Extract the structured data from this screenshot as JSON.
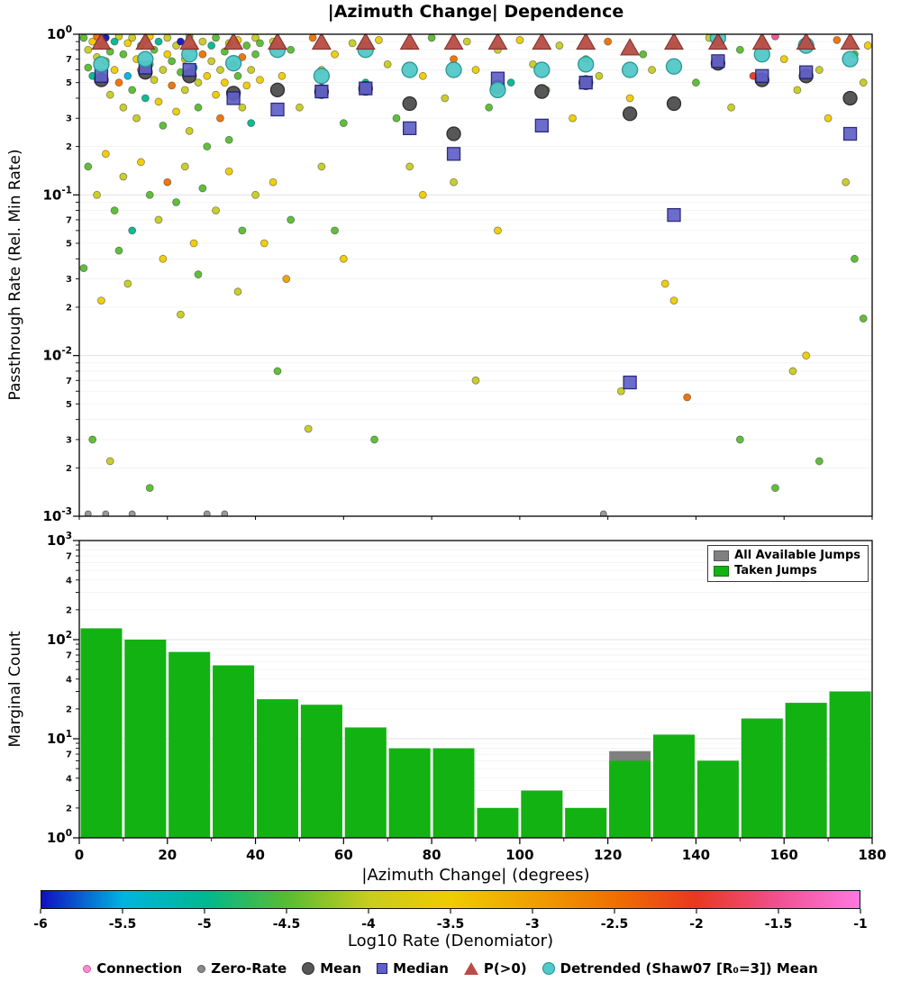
{
  "chart_data": [
    {
      "type": "scatter",
      "title": "|Azimuth Change| Dependence",
      "ylabel": "Passthrough Rate (Rel. Min Rate)",
      "xlim": [
        0,
        180
      ],
      "y_scale": "log",
      "y_decade_exponents": [
        0,
        -1,
        -2,
        -3
      ],
      "y_minor_labels": [
        7,
        5,
        3,
        2
      ],
      "grid": true,
      "bin_centers": [
        5,
        15,
        25,
        35,
        45,
        55,
        65,
        75,
        85,
        95,
        105,
        115,
        125,
        135,
        145,
        155,
        165,
        175
      ],
      "series": {
        "mean": [
          0.52,
          0.58,
          0.55,
          0.43,
          0.45,
          0.44,
          0.46,
          0.37,
          0.24,
          0.47,
          0.44,
          0.5,
          0.32,
          0.37,
          0.66,
          0.52,
          0.55,
          0.4
        ],
        "median": [
          0.55,
          0.62,
          0.6,
          0.4,
          0.34,
          0.44,
          0.46,
          0.26,
          0.18,
          0.53,
          0.27,
          0.5,
          0.0068,
          0.075,
          0.68,
          0.55,
          0.58,
          0.24
        ],
        "p_gt0": [
          0.98,
          1.0,
          0.99,
          1.0,
          1.0,
          1.0,
          1.0,
          1.0,
          1.0,
          1.0,
          1.0,
          1.0,
          0.82,
          1.0,
          1.0,
          1.0,
          1.0,
          1.0
        ],
        "detrended": [
          0.65,
          0.7,
          0.75,
          0.66,
          0.8,
          0.55,
          0.8,
          0.6,
          0.6,
          0.45,
          0.6,
          0.65,
          0.6,
          0.63,
          0.95,
          0.75,
          0.85,
          0.7
        ]
      },
      "markers": {
        "mean": {
          "fill": "#575757",
          "edge": "#2e2e2e"
        },
        "median": {
          "fill": "#6060c8",
          "edge": "#1c1c70"
        },
        "p_gt0": {
          "fill": "#b94c45",
          "edge": "#7d2e29"
        },
        "detrended": {
          "fill": "#52c8c8",
          "edge": "#23918f"
        },
        "zero_rate": {
          "fill": "#999999",
          "edge": "#5a5a5a"
        }
      },
      "zero_rate_x": [
        2,
        6,
        12,
        29,
        33,
        119
      ],
      "points": [
        [
          1,
          0.95,
          -4.5
        ],
        [
          2,
          0.8,
          -4
        ],
        [
          2,
          0.62,
          -4.5
        ],
        [
          3,
          0.9,
          -3.5
        ],
        [
          3,
          0.55,
          -5
        ],
        [
          4,
          0.97,
          -2.5
        ],
        [
          4,
          0.72,
          -4
        ],
        [
          5,
          0.5,
          -4.5
        ],
        [
          5,
          0.85,
          -4
        ],
        [
          6,
          0.95,
          -6
        ],
        [
          6,
          0.68,
          -3.5
        ],
        [
          7,
          0.78,
          -4.5
        ],
        [
          7,
          0.42,
          -4
        ],
        [
          8,
          0.9,
          -5
        ],
        [
          8,
          0.6,
          -3.5
        ],
        [
          9,
          0.5,
          -2.5
        ],
        [
          9,
          0.97,
          -4
        ],
        [
          10,
          0.75,
          -4.5
        ],
        [
          10,
          0.35,
          -4
        ],
        [
          11,
          0.88,
          -3.5
        ],
        [
          11,
          0.55,
          -5.5
        ],
        [
          12,
          0.95,
          -4
        ],
        [
          12,
          0.45,
          -4.5
        ],
        [
          13,
          0.7,
          -3.5
        ],
        [
          13,
          0.3,
          -4
        ],
        [
          14,
          0.85,
          -4.5
        ],
        [
          14,
          0.6,
          -2.5
        ],
        [
          15,
          0.92,
          -4
        ],
        [
          15,
          0.4,
          -5
        ],
        [
          16,
          0.65,
          -4.5
        ],
        [
          16,
          0.97,
          -3.5
        ],
        [
          17,
          0.52,
          -4
        ],
        [
          17,
          0.8,
          -4.5
        ],
        [
          18,
          0.38,
          -3.5
        ],
        [
          18,
          0.9,
          -5
        ],
        [
          19,
          0.6,
          -4
        ],
        [
          19,
          0.27,
          -4.5
        ],
        [
          20,
          0.75,
          -3.5
        ],
        [
          20,
          0.95,
          -4
        ],
        [
          21,
          0.48,
          -2.5
        ],
        [
          21,
          0.68,
          -4.5
        ],
        [
          22,
          0.85,
          -4
        ],
        [
          22,
          0.33,
          -3.5
        ],
        [
          23,
          0.58,
          -4.5
        ],
        [
          23,
          0.9,
          -6
        ],
        [
          24,
          0.45,
          -4
        ],
        [
          24,
          0.7,
          -3.5
        ],
        [
          25,
          0.97,
          -4.5
        ],
        [
          25,
          0.25,
          -4
        ],
        [
          26,
          0.62,
          -5
        ],
        [
          26,
          0.82,
          -3.5
        ],
        [
          27,
          0.5,
          -4
        ],
        [
          27,
          0.35,
          -4.5
        ],
        [
          28,
          0.75,
          -2.5
        ],
        [
          28,
          0.9,
          -4
        ],
        [
          29,
          0.55,
          -3.5
        ],
        [
          29,
          0.2,
          -4.5
        ],
        [
          30,
          0.68,
          -4
        ],
        [
          30,
          0.85,
          -5
        ],
        [
          31,
          0.42,
          -3.5
        ],
        [
          31,
          0.95,
          -4.5
        ],
        [
          32,
          0.6,
          -4
        ],
        [
          32,
          0.3,
          -2.5
        ],
        [
          33,
          0.78,
          -4.5
        ],
        [
          33,
          0.5,
          -3.5
        ],
        [
          34,
          0.88,
          -4
        ],
        [
          34,
          0.22,
          -4.5
        ],
        [
          35,
          0.65,
          -5
        ],
        [
          35,
          0.4,
          -4
        ],
        [
          36,
          0.92,
          -3.5
        ],
        [
          36,
          0.55,
          -4.5
        ],
        [
          37,
          0.35,
          -4
        ],
        [
          37,
          0.72,
          -2.5
        ],
        [
          38,
          0.85,
          -4.5
        ],
        [
          38,
          0.48,
          -3.5
        ],
        [
          39,
          0.6,
          -4
        ],
        [
          39,
          0.28,
          -5
        ],
        [
          40,
          0.75,
          -4.5
        ],
        [
          40,
          0.95,
          -4
        ],
        [
          41,
          0.52,
          -3.5
        ],
        [
          41,
          0.88,
          -4.5
        ],
        [
          2,
          0.15,
          -4.5
        ],
        [
          4,
          0.1,
          -4
        ],
        [
          6,
          0.18,
          -3.5
        ],
        [
          8,
          0.08,
          -4.5
        ],
        [
          10,
          0.13,
          -4
        ],
        [
          12,
          0.06,
          -5
        ],
        [
          14,
          0.16,
          -3.5
        ],
        [
          16,
          0.1,
          -4.5
        ],
        [
          18,
          0.07,
          -4
        ],
        [
          20,
          0.12,
          -2.5
        ],
        [
          22,
          0.09,
          -4.5
        ],
        [
          24,
          0.15,
          -4
        ],
        [
          26,
          0.05,
          -3.5
        ],
        [
          28,
          0.11,
          -4.5
        ],
        [
          31,
          0.08,
          -4
        ],
        [
          34,
          0.14,
          -3.5
        ],
        [
          37,
          0.06,
          -4.5
        ],
        [
          40,
          0.1,
          -4
        ],
        [
          44,
          0.12,
          -3.5
        ],
        [
          48,
          0.07,
          -4.5
        ],
        [
          55,
          0.15,
          -4
        ],
        [
          1,
          0.035,
          -4.5
        ],
        [
          3,
          0.003,
          -4.5
        ],
        [
          5,
          0.022,
          -3.5
        ],
        [
          7,
          0.0022,
          -4
        ],
        [
          9,
          0.045,
          -4.5
        ],
        [
          11,
          0.028,
          -4
        ],
        [
          16,
          0.0015,
          -4.5
        ],
        [
          19,
          0.04,
          -3.5
        ],
        [
          23,
          0.018,
          -4
        ],
        [
          27,
          0.032,
          -4.5
        ],
        [
          36,
          0.025,
          -4
        ],
        [
          42,
          0.05,
          -3.5
        ],
        [
          45,
          0.008,
          -4.5
        ],
        [
          47,
          0.03,
          -3
        ],
        [
          52,
          0.0035,
          -4
        ],
        [
          58,
          0.06,
          -4.5
        ],
        [
          60,
          0.04,
          -3.5
        ],
        [
          67,
          0.003,
          -4.5
        ],
        [
          75,
          0.15,
          -4
        ],
        [
          78,
          0.1,
          -3.5
        ],
        [
          85,
          0.12,
          -4
        ],
        [
          95,
          0.06,
          -3.5
        ],
        [
          44,
          0.9,
          -4
        ],
        [
          46,
          0.55,
          -3.5
        ],
        [
          48,
          0.8,
          -4.5
        ],
        [
          50,
          0.35,
          -4
        ],
        [
          53,
          0.95,
          -2.5
        ],
        [
          55,
          0.6,
          -4
        ],
        [
          58,
          0.75,
          -3.5
        ],
        [
          60,
          0.28,
          -4.5
        ],
        [
          62,
          0.88,
          -4
        ],
        [
          65,
          0.5,
          -5
        ],
        [
          68,
          0.92,
          -3.5
        ],
        [
          70,
          0.65,
          -4
        ],
        [
          72,
          0.3,
          -4.5
        ],
        [
          75,
          0.85,
          -4
        ],
        [
          78,
          0.55,
          -3.5
        ],
        [
          80,
          0.95,
          -4.5
        ],
        [
          83,
          0.4,
          -4
        ],
        [
          85,
          0.7,
          -2.5
        ],
        [
          88,
          0.9,
          -4
        ],
        [
          90,
          0.6,
          -3.5
        ],
        [
          93,
          0.35,
          -4.5
        ],
        [
          95,
          0.8,
          -4
        ],
        [
          98,
          0.5,
          -5
        ],
        [
          100,
          0.92,
          -3.5
        ],
        [
          103,
          0.65,
          -4
        ],
        [
          106,
          0.45,
          -4.5
        ],
        [
          109,
          0.85,
          -4
        ],
        [
          112,
          0.3,
          -3.5
        ],
        [
          115,
          0.7,
          -4.5
        ],
        [
          118,
          0.55,
          -4
        ],
        [
          120,
          0.9,
          -2.5
        ],
        [
          123,
          0.006,
          -4
        ],
        [
          125,
          0.4,
          -3.5
        ],
        [
          128,
          0.75,
          -4.5
        ],
        [
          130,
          0.6,
          -4
        ],
        [
          133,
          0.028,
          -3.5
        ],
        [
          135,
          0.85,
          -4
        ],
        [
          138,
          0.0055,
          -2.5
        ],
        [
          140,
          0.5,
          -4.5
        ],
        [
          143,
          0.95,
          -4
        ],
        [
          145,
          0.65,
          -3.5
        ],
        [
          148,
          0.35,
          -4
        ],
        [
          150,
          0.8,
          -4.5
        ],
        [
          153,
          0.55,
          -2
        ],
        [
          155,
          0.9,
          -4
        ],
        [
          158,
          0.0015,
          -4.5
        ],
        [
          160,
          0.7,
          -3.5
        ],
        [
          163,
          0.45,
          -4
        ],
        [
          165,
          0.88,
          -4.5
        ],
        [
          168,
          0.6,
          -4
        ],
        [
          170,
          0.3,
          -3.5
        ],
        [
          172,
          0.92,
          -2.5
        ],
        [
          174,
          0.12,
          -4
        ],
        [
          176,
          0.75,
          -4.5
        ],
        [
          178,
          0.5,
          -4
        ],
        [
          179,
          0.85,
          -3.5
        ],
        [
          176,
          0.04,
          -4.5
        ],
        [
          178,
          0.017,
          -4.5
        ],
        [
          165,
          0.01,
          -3.5
        ],
        [
          162,
          0.008,
          -4
        ],
        [
          168,
          0.0022,
          -4.5
        ],
        [
          150,
          0.003,
          -4.5
        ],
        [
          135,
          0.022,
          -3.5
        ],
        [
          90,
          0.007,
          -4
        ],
        [
          158,
          0.97,
          -1.5
        ]
      ]
    },
    {
      "type": "bar",
      "ylabel": "Marginal Count",
      "xlabel": "|Azimuth Change| (degrees)",
      "y_scale": "log",
      "y_decade_exponents": [
        3,
        2,
        1,
        0
      ],
      "y_minor_labels": [
        7,
        4,
        2
      ],
      "grid": true,
      "bin_width": 10,
      "bin_start": 0,
      "xticks": [
        0,
        20,
        40,
        60,
        80,
        100,
        120,
        140,
        160,
        180
      ],
      "series": [
        {
          "name": "All Available Jumps",
          "color": "#808080",
          "values": [
            130,
            100,
            75,
            55,
            25,
            22,
            13,
            8,
            8,
            2,
            3,
            2,
            7.5,
            11,
            6,
            16,
            23,
            30
          ]
        },
        {
          "name": "Taken Jumps",
          "color": "#12b212",
          "values": [
            130,
            100,
            75,
            55,
            25,
            22,
            13,
            8,
            8,
            2,
            3,
            2,
            6,
            11,
            6,
            16,
            23,
            30
          ]
        }
      ]
    }
  ],
  "colorbar": {
    "label": "Log10 Rate (Denomiator)",
    "ticks": [
      "-6",
      "-5.5",
      "-5",
      "-4.5",
      "-4",
      "-3.5",
      "-3",
      "-2.5",
      "-2",
      "-1.5",
      "-1"
    ],
    "range": [
      -6,
      -1
    ],
    "stops": [
      [
        0.0,
        "#1010c0"
      ],
      [
        0.1,
        "#00b4e0"
      ],
      [
        0.2,
        "#00b890"
      ],
      [
        0.3,
        "#58bc30"
      ],
      [
        0.4,
        "#c8cc20"
      ],
      [
        0.5,
        "#f0cc00"
      ],
      [
        0.6,
        "#f0a000"
      ],
      [
        0.7,
        "#f07000"
      ],
      [
        0.8,
        "#e83820"
      ],
      [
        0.9,
        "#f05090"
      ],
      [
        1.0,
        "#ff78e0"
      ]
    ]
  },
  "legend": {
    "items": [
      {
        "label": "Connection",
        "marker": "dot-small",
        "color": "#fb8ccd",
        "edge": "#d05a9e"
      },
      {
        "label": "Zero-Rate",
        "marker": "dot-small",
        "color": "#8a8a8a",
        "edge": "#5a5a5a"
      },
      {
        "label": "Mean",
        "marker": "dot",
        "color": "#575757",
        "edge": "#2e2e2e"
      },
      {
        "label": "Median",
        "marker": "square",
        "color": "#6060c8",
        "edge": "#1c1c70"
      },
      {
        "label": "P(>0)",
        "marker": "triangle",
        "color": "#b94c45",
        "edge": "#7d2e29"
      },
      {
        "label": "Detrended (Shaw07 [R₀=3]) Mean",
        "marker": "dot",
        "color": "#52c8c8",
        "edge": "#23918f"
      }
    ]
  }
}
